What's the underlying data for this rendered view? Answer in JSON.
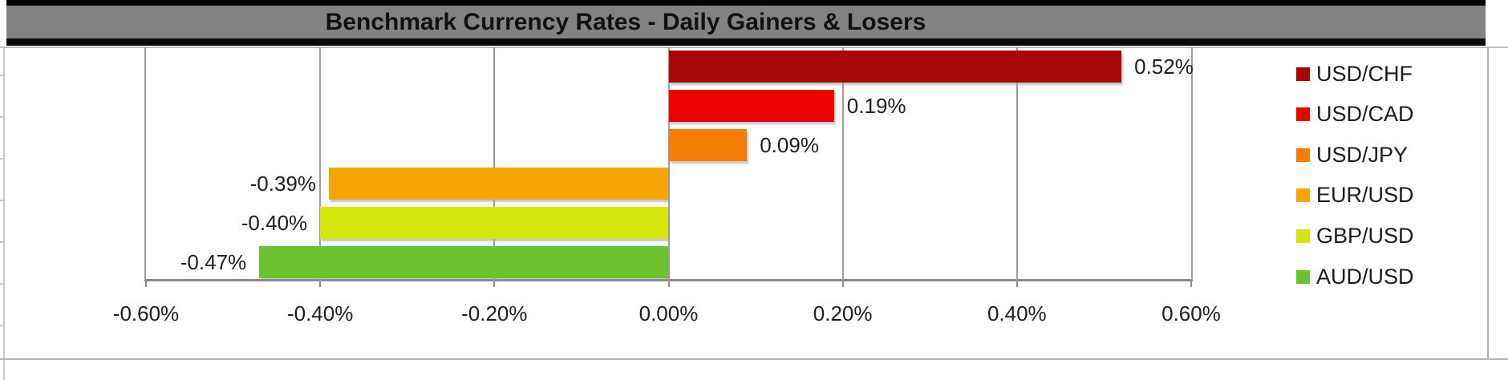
{
  "chart_data": {
    "type": "bar",
    "orientation": "horizontal",
    "title": "Benchmark Currency Rates - Daily Gainers & Losers",
    "categories": [
      "USD/CHF",
      "USD/CAD",
      "USD/JPY",
      "EUR/USD",
      "GBP/USD",
      "AUD/USD"
    ],
    "values": [
      0.52,
      0.19,
      0.09,
      -0.39,
      -0.4,
      -0.47
    ],
    "value_labels": [
      "0.52%",
      "0.19%",
      "0.09%",
      "-0.39%",
      "-0.40%",
      "-0.47%"
    ],
    "colors": [
      "#A60808",
      "#EE0101",
      "#F47D04",
      "#F6A603",
      "#D4E60D",
      "#6DC22F"
    ],
    "xlim": [
      -0.6,
      0.6
    ],
    "x_tick_values": [
      -0.6,
      -0.4,
      -0.2,
      0.0,
      0.2,
      0.4,
      0.6
    ],
    "x_tick_labels": [
      "-0.60%",
      "-0.40%",
      "-0.20%",
      "0.00%",
      "0.20%",
      "0.40%",
      "0.60%"
    ],
    "grid": true,
    "legend_position": "right",
    "legend_entries": [
      "USD/CHF",
      "USD/CAD",
      "USD/JPY",
      "EUR/USD",
      "GBP/USD",
      "AUD/USD"
    ]
  },
  "style": {
    "title_bar_bg": "#828282",
    "grid_color": "#9e9e9e",
    "axis_color": "#8a8a8a",
    "label_color": "#1f1f1f"
  }
}
